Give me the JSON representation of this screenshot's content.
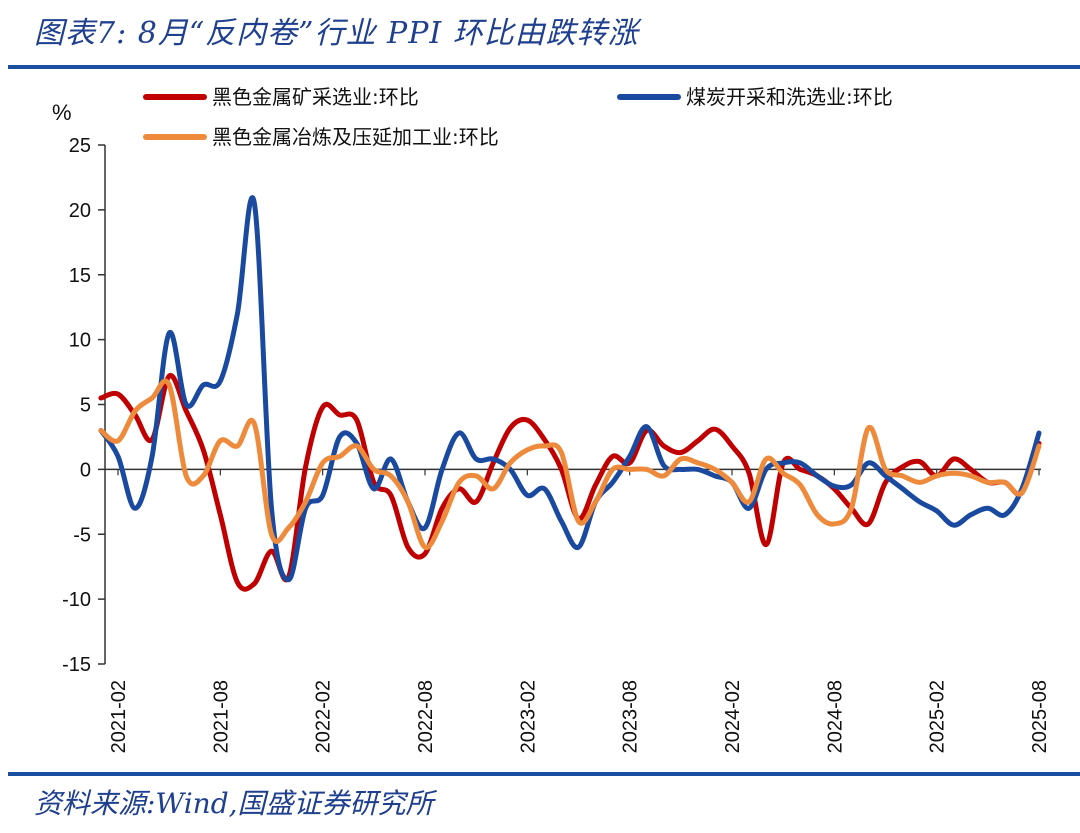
{
  "header": {
    "title": "图表7:  8月“反内卷”行业 PPI 环比由跌转涨"
  },
  "footer": {
    "source": "资料来源:Wind,国盛证券研究所"
  },
  "chart_data": {
    "type": "line",
    "unit_label": "%",
    "ylim": [
      -15,
      25
    ],
    "yticks": [
      25,
      20,
      15,
      10,
      5,
      0,
      -5,
      -10,
      -15
    ],
    "xticks": [
      "2021-02",
      "2021-08",
      "2022-02",
      "2022-08",
      "2023-02",
      "2023-08",
      "2024-02",
      "2024-08",
      "2025-02",
      "2025-08"
    ],
    "x": [
      "2021-01",
      "2021-02",
      "2021-03",
      "2021-04",
      "2021-05",
      "2021-06",
      "2021-07",
      "2021-08",
      "2021-09",
      "2021-10",
      "2021-11",
      "2021-12",
      "2022-01",
      "2022-02",
      "2022-03",
      "2022-04",
      "2022-05",
      "2022-06",
      "2022-07",
      "2022-08",
      "2022-09",
      "2022-10",
      "2022-11",
      "2022-12",
      "2023-01",
      "2023-02",
      "2023-03",
      "2023-04",
      "2023-05",
      "2023-06",
      "2023-07",
      "2023-08",
      "2023-09",
      "2023-10",
      "2023-11",
      "2023-12",
      "2024-01",
      "2024-02",
      "2024-03",
      "2024-04",
      "2024-05",
      "2024-06",
      "2024-07",
      "2024-08",
      "2024-09",
      "2024-10",
      "2024-11",
      "2024-12",
      "2025-01",
      "2025-02",
      "2025-03",
      "2025-04",
      "2025-05",
      "2025-06",
      "2025-07",
      "2025-08"
    ],
    "series": [
      {
        "name": "黑色金属矿采选业:环比",
        "color": "#c00000",
        "values": [
          5.5,
          5.8,
          4.2,
          2.3,
          7.2,
          4.5,
          1.5,
          -3.5,
          -8.7,
          -8.8,
          -6.3,
          -8.3,
          0.2,
          4.8,
          4.2,
          3.8,
          -1.0,
          -2.0,
          -6.0,
          -6.5,
          -3.0,
          -1.5,
          -2.5,
          0.5,
          3.2,
          3.8,
          2.3,
          0.0,
          -3.8,
          -1.2,
          1.0,
          0.5,
          3.0,
          1.8,
          1.3,
          2.2,
          3.1,
          1.8,
          -0.3,
          -5.8,
          0.5,
          0.0,
          -0.5,
          -1.5,
          -3.0,
          -4.2,
          -1.0,
          0.2,
          0.6,
          -0.5,
          0.8,
          0.0,
          -1.0,
          -1.0,
          -1.8,
          2.0
        ]
      },
      {
        "name": "煤炭开采和洗选业:环比",
        "color": "#1a4aa0",
        "values": [
          3.0,
          1.0,
          -3.0,
          1.0,
          10.5,
          5.0,
          6.5,
          6.8,
          12.0,
          20.5,
          -3.0,
          -8.5,
          -3.0,
          -2.0,
          2.5,
          2.0,
          -1.5,
          0.8,
          -2.5,
          -4.5,
          0.0,
          2.8,
          0.8,
          0.8,
          0.0,
          -2.0,
          -1.5,
          -4.0,
          -6.0,
          -2.5,
          -1.0,
          1.0,
          3.3,
          0.3,
          0.0,
          0.0,
          -0.5,
          -1.0,
          -3.0,
          0.0,
          0.5,
          0.5,
          -0.5,
          -1.3,
          -1.2,
          0.5,
          -0.5,
          -1.5,
          -2.5,
          -3.2,
          -4.3,
          -3.5,
          -3.0,
          -3.5,
          -1.5,
          2.8
        ]
      },
      {
        "name": "黑色金属冶炼及压延加工业:环比",
        "color": "#ee8a3c",
        "values": [
          3.0,
          2.2,
          4.5,
          5.5,
          6.5,
          -0.5,
          -0.5,
          2.2,
          1.8,
          3.5,
          -5.0,
          -4.5,
          -2.5,
          0.5,
          1.0,
          1.8,
          0.0,
          -0.5,
          -2.5,
          -6.0,
          -4.0,
          -1.0,
          -0.5,
          -1.5,
          0.5,
          1.5,
          1.8,
          1.3,
          -4.0,
          -2.5,
          0.0,
          0.0,
          0.0,
          -0.5,
          0.8,
          0.5,
          0.0,
          -1.0,
          -2.5,
          0.8,
          -0.3,
          -1.2,
          -3.5,
          -4.2,
          -3.0,
          3.2,
          0.0,
          -0.5,
          -1.0,
          -0.5,
          -0.3,
          -0.5,
          -1.0,
          -1.0,
          -1.8,
          1.8
        ]
      }
    ]
  }
}
